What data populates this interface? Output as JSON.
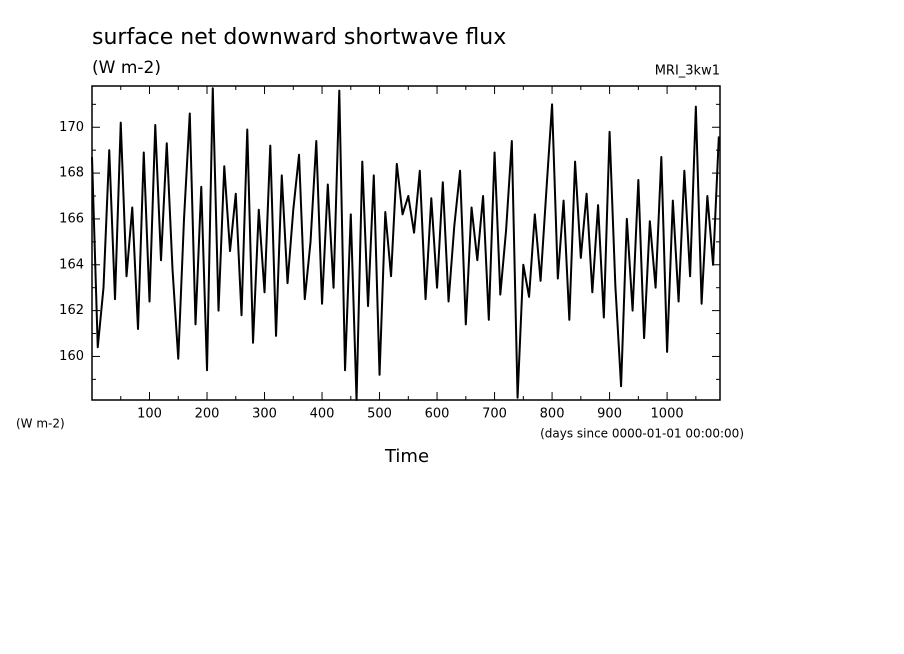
{
  "chart_data": {
    "type": "line",
    "title": "surface net downward shortwave flux",
    "units": "(W m-2)",
    "model": "MRI_3kw1",
    "y_label": "(W m-2)",
    "x_label": "Time",
    "x_units": "(days since 0000-01-01 00:00:00)",
    "color": "#000000",
    "xlim": [
      0,
      1092
    ],
    "ylim": [
      158.1,
      171.8
    ],
    "xticks": [
      100,
      200,
      300,
      400,
      500,
      600,
      700,
      800,
      900,
      1000
    ],
    "xticks_minor": [
      50,
      150,
      250,
      350,
      450,
      550,
      650,
      750,
      850,
      950,
      1050
    ],
    "yticks": [
      160,
      162,
      164,
      166,
      168,
      170
    ],
    "yticks_minor": [
      159,
      161,
      163,
      165,
      167,
      169,
      171
    ],
    "x": [
      0,
      10,
      20,
      30,
      40,
      50,
      60,
      70,
      80,
      90,
      100,
      110,
      120,
      130,
      140,
      150,
      160,
      170,
      180,
      190,
      200,
      210,
      220,
      230,
      240,
      250,
      260,
      270,
      280,
      290,
      300,
      310,
      320,
      330,
      340,
      350,
      360,
      370,
      380,
      390,
      400,
      410,
      420,
      430,
      440,
      450,
      460,
      470,
      480,
      490,
      500,
      510,
      520,
      530,
      540,
      550,
      560,
      570,
      580,
      590,
      600,
      610,
      620,
      630,
      640,
      650,
      660,
      670,
      680,
      690,
      700,
      710,
      720,
      730,
      740,
      750,
      760,
      770,
      780,
      790,
      800,
      810,
      820,
      830,
      840,
      850,
      860,
      870,
      880,
      890,
      900,
      910,
      920,
      930,
      940,
      950,
      960,
      970,
      980,
      990,
      1000,
      1010,
      1020,
      1030,
      1040,
      1050,
      1060,
      1070,
      1080,
      1090
    ],
    "values": [
      168.7,
      160.4,
      163.0,
      169.0,
      162.5,
      170.2,
      163.5,
      166.5,
      161.2,
      168.9,
      162.4,
      170.1,
      164.2,
      169.3,
      163.8,
      159.9,
      166.0,
      170.6,
      161.4,
      167.4,
      159.4,
      171.7,
      162.0,
      168.3,
      164.6,
      167.1,
      161.8,
      169.9,
      160.6,
      166.4,
      162.8,
      169.2,
      160.9,
      167.9,
      163.2,
      166.4,
      168.8,
      162.5,
      165.0,
      169.4,
      162.3,
      167.5,
      163.0,
      171.6,
      159.4,
      166.2,
      158.1,
      168.5,
      162.2,
      167.9,
      159.2,
      166.3,
      163.5,
      168.4,
      166.2,
      167.0,
      165.4,
      168.1,
      162.5,
      166.9,
      163.0,
      167.6,
      162.4,
      165.7,
      168.1,
      161.4,
      166.5,
      164.2,
      167.0,
      161.6,
      168.9,
      162.7,
      165.5,
      169.4,
      158.2,
      164.0,
      162.6,
      166.2,
      163.3,
      167.2,
      171.0,
      163.4,
      166.8,
      161.6,
      168.5,
      164.3,
      167.1,
      162.8,
      166.6,
      161.7,
      169.8,
      163.1,
      158.7,
      166.0,
      162.0,
      167.7,
      160.8,
      165.9,
      163.0,
      168.7,
      160.2,
      166.8,
      162.4,
      168.1,
      163.5,
      170.9,
      162.3,
      167.0,
      164.0,
      169.6
    ]
  }
}
